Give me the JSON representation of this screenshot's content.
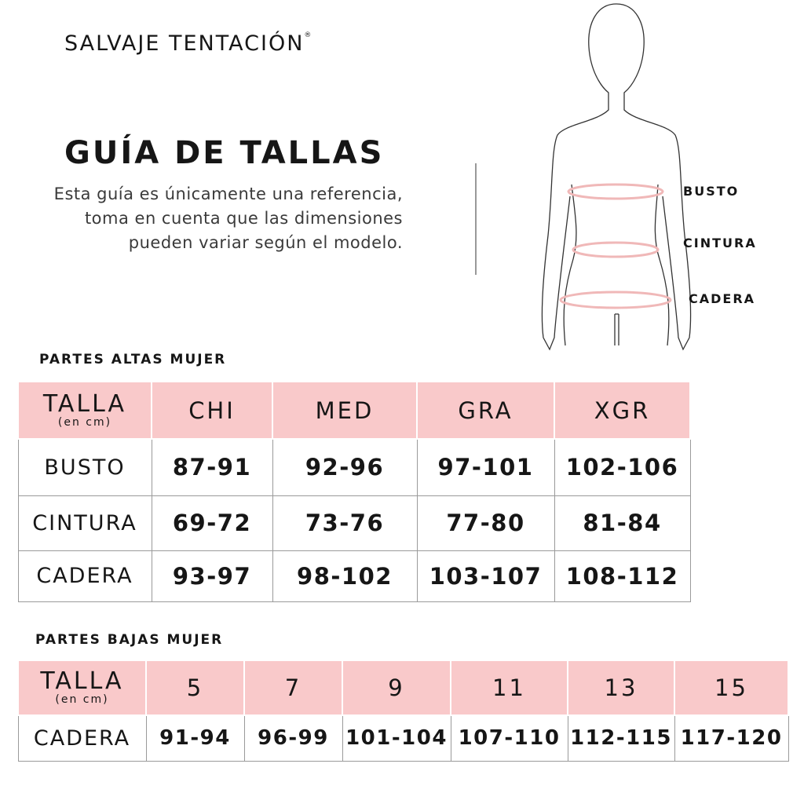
{
  "brand": {
    "name": "SALVAJE TENTACIÓN",
    "mark": "®"
  },
  "title": "GUÍA DE TALLAS",
  "description": "Esta guía es únicamente una referencia, toma en cuenta que las dimensiones pueden variar según el modelo.",
  "figure": {
    "labels": [
      "BUSTO",
      "CINTURA",
      "CADERA"
    ],
    "band_color": "#f0b8b8"
  },
  "colors": {
    "header_bg": "#f9c9ca",
    "border": "#9a9a9a"
  },
  "upper": {
    "heading": "PARTES ALTAS MUJER",
    "talla": "TALLA",
    "unit": "(en cm)",
    "sizes": [
      "CHI",
      "MED",
      "GRA",
      "XGR"
    ],
    "rows": [
      {
        "label": "BUSTO",
        "values": [
          "87-91",
          "92-96",
          "97-101",
          "102-106"
        ]
      },
      {
        "label": "CINTURA",
        "values": [
          "69-72",
          "73-76",
          "77-80",
          "81-84"
        ]
      },
      {
        "label": "CADERA",
        "values": [
          "93-97",
          "98-102",
          "103-107",
          "108-112"
        ]
      }
    ]
  },
  "lower": {
    "heading": "PARTES BAJAS MUJER",
    "talla": "TALLA",
    "unit": "(en cm)",
    "sizes": [
      "5",
      "7",
      "9",
      "11",
      "13",
      "15"
    ],
    "rows": [
      {
        "label": "CADERA",
        "values": [
          "91-94",
          "96-99",
          "101-104",
          "107-110",
          "112-115",
          "117-120"
        ]
      }
    ]
  }
}
